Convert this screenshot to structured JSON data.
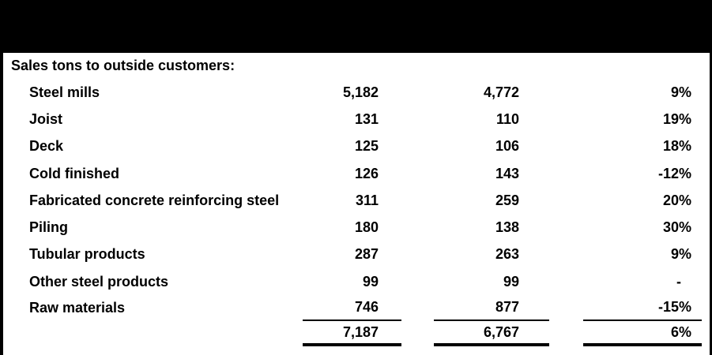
{
  "table": {
    "header": "Sales tons to outside customers:",
    "rows": [
      {
        "label": "Steel mills",
        "current": "5,182",
        "prior": "4,772",
        "change": "9%"
      },
      {
        "label": "Joist",
        "current": "131",
        "prior": "110",
        "change": "19%"
      },
      {
        "label": "Deck",
        "current": "125",
        "prior": "106",
        "change": "18%"
      },
      {
        "label": "Cold finished",
        "current": "126",
        "prior": "143",
        "change": "-12%"
      },
      {
        "label": "Fabricated concrete reinforcing steel",
        "current": "311",
        "prior": "259",
        "change": "20%"
      },
      {
        "label": "Piling",
        "current": "180",
        "prior": "138",
        "change": "30%"
      },
      {
        "label": "Tubular products",
        "current": "287",
        "prior": "263",
        "change": "9%"
      },
      {
        "label": "Other steel products",
        "current": "99",
        "prior": "99",
        "change": "-"
      },
      {
        "label": "Raw materials",
        "current": "746",
        "prior": "877",
        "change": "-15%"
      }
    ],
    "total": {
      "label": "",
      "current": "7,187",
      "prior": "6,767",
      "change": "6%"
    }
  },
  "colors": {
    "band": "#000000",
    "background": "#ffffff",
    "text": "#000000"
  }
}
